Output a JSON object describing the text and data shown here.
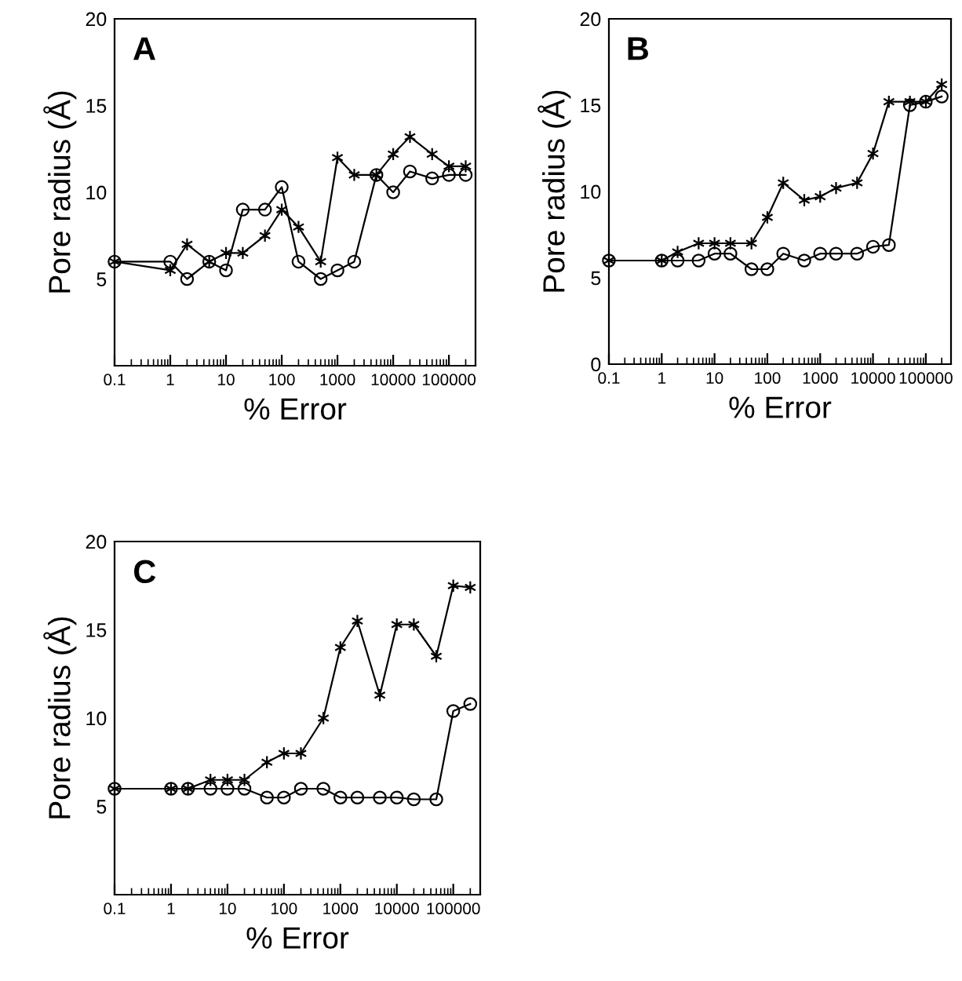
{
  "chart_data": [
    {
      "type": "line",
      "xlabel": "% Error",
      "ylabel": "Pore radius (Å)",
      "annotations": [
        "A"
      ],
      "log": "x",
      "xlim": [
        0.1,
        300000
      ],
      "ylim": [
        0,
        20
      ],
      "xticks": [
        0.1,
        1,
        10,
        100,
        1000,
        10000,
        100000
      ],
      "yticks": [
        5,
        10,
        15,
        20
      ],
      "x": [
        0.1,
        1,
        2,
        5,
        10,
        20,
        50,
        100,
        200,
        500,
        1000,
        2000,
        5000,
        10000,
        20000,
        50000,
        100000,
        200000
      ],
      "series": [
        {
          "color": "#000000",
          "marker": "cross",
          "values": [
            6,
            5.5,
            7,
            6,
            6.5,
            6.5,
            7.5,
            9,
            8,
            6,
            12,
            11,
            11,
            12.2,
            13.2,
            12.2,
            11.5,
            11.5
          ]
        },
        {
          "color": "#000000",
          "marker": "circle",
          "values": [
            6,
            6,
            5,
            6,
            5.5,
            9,
            9,
            10.3,
            6,
            5,
            5.5,
            6,
            11,
            10,
            11.2,
            10.8,
            11,
            11
          ]
        }
      ]
    },
    {
      "type": "line",
      "xlabel": "% Error",
      "ylabel": "Pore radius (Å)",
      "annotations": [
        "B"
      ],
      "log": "x",
      "xlim": [
        0.1,
        300000
      ],
      "ylim": [
        0,
        20
      ],
      "xticks": [
        0.1,
        1,
        10,
        100,
        1000,
        10000,
        100000
      ],
      "yticks": [
        0,
        5,
        10,
        15,
        20
      ],
      "x": [
        0.1,
        1,
        2,
        5,
        10,
        20,
        50,
        100,
        200,
        500,
        1000,
        2000,
        5000,
        10000,
        20000,
        50000,
        100000,
        200000
      ],
      "series": [
        {
          "color": "#000000",
          "marker": "circle",
          "values": [
            6,
            6,
            6,
            6,
            6.4,
            6.4,
            5.5,
            5.5,
            6.4,
            6,
            6.4,
            6.4,
            6.4,
            6.8,
            6.9,
            15,
            15.2,
            15.5
          ]
        },
        {
          "color": "#000000",
          "marker": "cross",
          "values": [
            6,
            6,
            6.5,
            7,
            7,
            7,
            7,
            8.5,
            10.5,
            9.5,
            9.7,
            10.2,
            10.5,
            12.2,
            15.2,
            15.2,
            15.2,
            16.2
          ]
        }
      ]
    },
    {
      "type": "line",
      "xlabel": "% Error",
      "ylabel": "Pore radius (Å)",
      "annotations": [
        "C"
      ],
      "log": "x",
      "xlim": [
        0.1,
        300000
      ],
      "ylim": [
        0,
        20
      ],
      "xticks": [
        0.1,
        1,
        10,
        100,
        1000,
        10000,
        100000
      ],
      "yticks": [
        5,
        10,
        15,
        20
      ],
      "x": [
        0.1,
        1,
        2,
        5,
        10,
        20,
        50,
        100,
        200,
        500,
        1000,
        2000,
        5000,
        10000,
        20000,
        50000,
        100000,
        200000
      ],
      "series": [
        {
          "color": "#000000",
          "marker": "cross",
          "values": [
            6,
            6,
            6,
            6.5,
            6.5,
            6.5,
            7.5,
            8,
            8,
            10,
            14,
            15.5,
            11.3,
            15.3,
            15.3,
            13.5,
            17.5,
            17.4
          ]
        },
        {
          "color": "#000000",
          "marker": "circle",
          "values": [
            6,
            6,
            6,
            6,
            6,
            6,
            5.5,
            5.5,
            6,
            6,
            5.5,
            5.5,
            5.5,
            5.5,
            5.4,
            5.4,
            10.4,
            10.8
          ]
        }
      ]
    }
  ]
}
